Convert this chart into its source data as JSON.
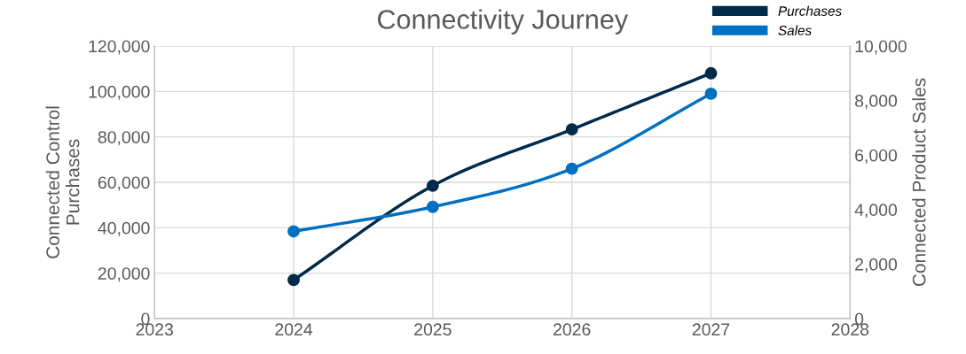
{
  "chart_data": {
    "type": "line",
    "title": "Connectivity Journey",
    "xlabel": null,
    "ylabel": "Connected Control\nPurchases",
    "y2label": "Connected Product Sales",
    "x": [
      2024,
      2025,
      2026,
      2027
    ],
    "series": [
      {
        "name": "Purchases",
        "color": "#002a4a",
        "values": [
          17000,
          58500,
          83300,
          108000
        ]
      },
      {
        "name": "Sales",
        "color": "#0070c0",
        "axis": "y2",
        "values": [
          3200,
          4100,
          5500,
          8250
        ]
      }
    ],
    "xlim": [
      2023,
      2028
    ],
    "xticks": [
      2023,
      2024,
      2025,
      2026,
      2027,
      2028
    ],
    "ylim": [
      0,
      120000
    ],
    "yticks": [
      {
        "value": 0,
        "label": "0"
      },
      {
        "value": 20000,
        "label": "20,000"
      },
      {
        "value": 40000,
        "label": "40,000"
      },
      {
        "value": 60000,
        "label": "60,000"
      },
      {
        "value": 80000,
        "label": "80,000"
      },
      {
        "value": 100000,
        "label": "100,000"
      },
      {
        "value": 120000,
        "label": "120,000"
      }
    ],
    "y2lim": [
      0,
      10000
    ],
    "y2ticks": [
      {
        "value": 0,
        "label": "0"
      },
      {
        "value": 2000,
        "label": "2,000"
      },
      {
        "value": 4000,
        "label": "4,000"
      },
      {
        "value": 6000,
        "label": "6,000"
      },
      {
        "value": 8000,
        "label": "8,000"
      },
      {
        "value": 10000,
        "label": "10,000"
      }
    ],
    "grid": true,
    "legend": "top right",
    "marker": "circle",
    "line_style": "solid"
  }
}
